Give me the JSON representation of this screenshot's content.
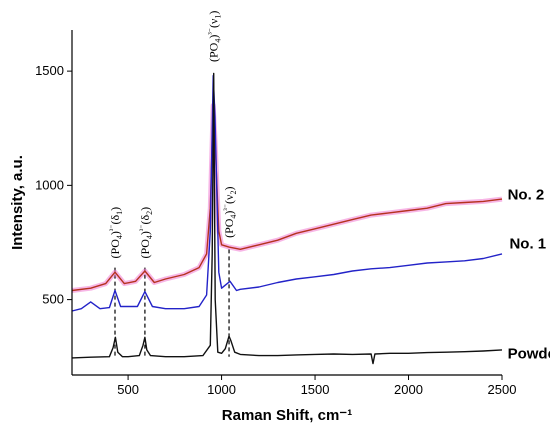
{
  "chart_data": {
    "type": "line",
    "xlabel": "Raman Shift, cm⁻¹",
    "ylabel": "Intensity, a.u.",
    "xlim": [
      200,
      2500
    ],
    "ylim": [
      170,
      1680
    ],
    "x_ticks": [
      "500",
      "1000",
      "1500",
      "2000",
      "2500"
    ],
    "y_ticks": [
      "500",
      "1000",
      "1500"
    ],
    "grid": false,
    "legend": "none",
    "series": [
      {
        "name": "No. 2",
        "color": "#b5321f",
        "halo_color": "#f07ad2",
        "x": [
          200,
          300,
          380,
          430,
          480,
          540,
          590,
          640,
          700,
          800,
          880,
          920,
          940,
          955,
          965,
          985,
          1000,
          1040,
          1100,
          1200,
          1300,
          1400,
          1500,
          1600,
          1700,
          1800,
          1900,
          2000,
          2100,
          2200,
          2300,
          2400,
          2500
        ],
        "y": [
          540,
          550,
          570,
          620,
          570,
          580,
          625,
          575,
          590,
          610,
          640,
          700,
          900,
          1350,
          1200,
          800,
          740,
          730,
          720,
          740,
          760,
          790,
          810,
          830,
          850,
          870,
          880,
          890,
          900,
          920,
          925,
          930,
          940
        ]
      },
      {
        "name": "No. 1",
        "color": "#2323c8",
        "x": [
          200,
          250,
          300,
          350,
          400,
          430,
          460,
          500,
          550,
          590,
          630,
          700,
          800,
          880,
          920,
          940,
          955,
          965,
          985,
          1000,
          1045,
          1080,
          1100,
          1200,
          1300,
          1400,
          1500,
          1600,
          1700,
          1800,
          1900,
          2000,
          2100,
          2200,
          2300,
          2400,
          2500
        ],
        "y": [
          450,
          460,
          490,
          460,
          465,
          540,
          470,
          470,
          470,
          535,
          470,
          460,
          460,
          470,
          520,
          800,
          1480,
          1300,
          620,
          550,
          580,
          540,
          545,
          555,
          575,
          590,
          600,
          610,
          625,
          635,
          640,
          650,
          660,
          665,
          670,
          680,
          700
        ]
      },
      {
        "name": "Powder HAp",
        "color": "#111111",
        "x": [
          200,
          300,
          400,
          420,
          432,
          445,
          470,
          500,
          560,
          580,
          590,
          600,
          620,
          700,
          800,
          900,
          940,
          950,
          958,
          966,
          980,
          1000,
          1020,
          1040,
          1050,
          1070,
          1100,
          1200,
          1300,
          1400,
          1500,
          1600,
          1700,
          1800,
          1810,
          1820,
          1900,
          2000,
          2100,
          2200,
          2300,
          2400,
          2500
        ],
        "y": [
          245,
          248,
          250,
          290,
          335,
          270,
          250,
          250,
          255,
          300,
          335,
          280,
          255,
          250,
          250,
          255,
          300,
          700,
          1490,
          500,
          270,
          265,
          285,
          340,
          320,
          270,
          260,
          255,
          255,
          258,
          260,
          262,
          260,
          262,
          220,
          262,
          265,
          265,
          268,
          270,
          272,
          275,
          280
        ]
      }
    ],
    "series_labels": [
      {
        "text": "No. 2",
        "x": 2530,
        "y": 960
      },
      {
        "text": "No. 1",
        "x": 2540,
        "y": 745
      },
      {
        "text": "Powder HAp",
        "x": 2530,
        "y": 265
      }
    ],
    "annotations": [
      {
        "base": "(PO",
        "sub": "4",
        "sup": ")³⁻(δ",
        "sub2": "1",
        "end": ")",
        "x": 430,
        "y": 680,
        "rotate": -90
      },
      {
        "base": "(PO",
        "sub": "4",
        "sup": ")³⁻(δ",
        "sub2": "2",
        "end": ")",
        "x": 590,
        "y": 680,
        "rotate": -90
      },
      {
        "base": "(PO",
        "sub": "4",
        "sup": ")³⁻(ν",
        "sub2": "1",
        "end": ")",
        "x": 958,
        "y": 1540,
        "rotate": -90
      },
      {
        "base": "(PO",
        "sub": "4",
        "sup": ")³⁻(ν",
        "sub2": "2",
        "end": ")",
        "x": 1040,
        "y": 770,
        "rotate": -90
      }
    ],
    "dashed_markers": [
      {
        "x": 430,
        "y_top": 640,
        "y_bottom": 250
      },
      {
        "x": 590,
        "y_top": 640,
        "y_bottom": 250
      },
      {
        "x": 1040,
        "y_top": 720,
        "y_bottom": 250
      }
    ]
  }
}
